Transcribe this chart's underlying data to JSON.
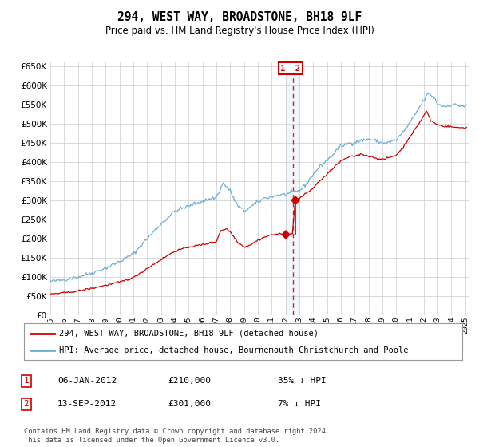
{
  "title": "294, WEST WAY, BROADSTONE, BH18 9LF",
  "subtitle": "Price paid vs. HM Land Registry's House Price Index (HPI)",
  "yticks": [
    0,
    50000,
    100000,
    150000,
    200000,
    250000,
    300000,
    350000,
    400000,
    450000,
    500000,
    550000,
    600000,
    650000
  ],
  "hpi_color": "#6baed6",
  "price_color": "#cc0000",
  "vspan_color": "#ddeeff",
  "vline_color": "#cc0000",
  "sale1_price": 210000,
  "sale1_x": 2012.04,
  "sale2_price": 301000,
  "sale2_x": 2012.71,
  "legend_line1": "294, WEST WAY, BROADSTONE, BH18 9LF (detached house)",
  "legend_line2": "HPI: Average price, detached house, Bournemouth Christchurch and Poole",
  "note1_date": "06-JAN-2012",
  "note1_price": "£210,000",
  "note1_pct": "35% ↓ HPI",
  "note2_date": "13-SEP-2012",
  "note2_price": "£301,000",
  "note2_pct": "7% ↓ HPI",
  "footer": "Contains HM Land Registry data © Crown copyright and database right 2024.\nThis data is licensed under the Open Government Licence v3.0.",
  "background_color": "#ffffff",
  "grid_color": "#cccccc"
}
